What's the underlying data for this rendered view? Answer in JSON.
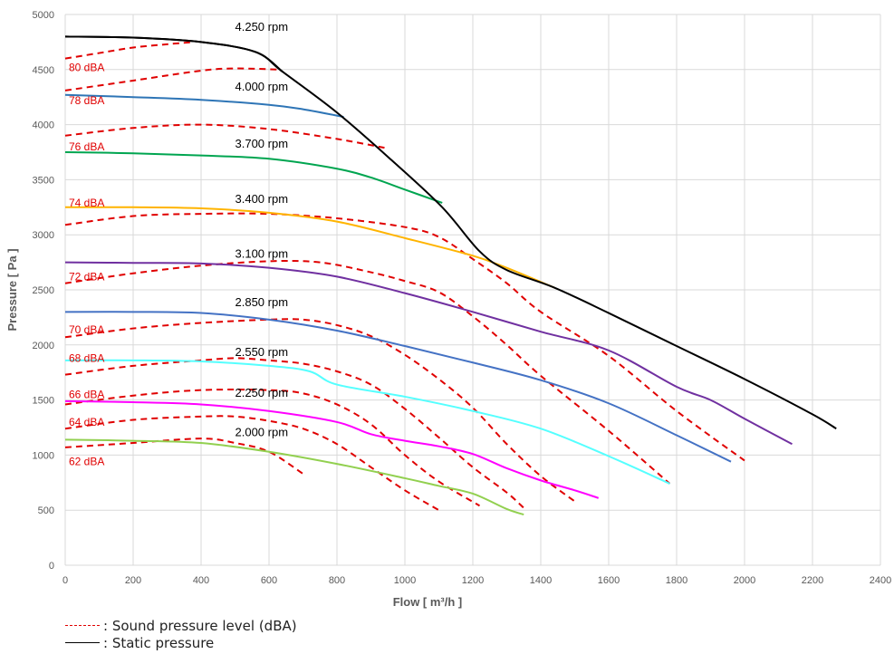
{
  "chart_data": {
    "type": "line",
    "xlabel": "Flow  [ m³/h ]",
    "ylabel": "Pressure  [ Pa ]",
    "xlim": [
      0,
      2400
    ],
    "ylim": [
      0,
      5000
    ],
    "x_ticks": [
      "0",
      "200",
      "400",
      "600",
      "800",
      "1000",
      "1200",
      "1400",
      "1600",
      "1800",
      "2000",
      "2200",
      "2400"
    ],
    "y_ticks": [
      "0",
      "500",
      "1000",
      "1500",
      "2000",
      "2500",
      "3000",
      "3500",
      "4000",
      "4500",
      "5000"
    ],
    "grid": true,
    "static_pressure_envelope": {
      "name": "Static pressure",
      "color": "#000000",
      "points": [
        [
          0,
          4800
        ],
        [
          200,
          4790
        ],
        [
          400,
          4750
        ],
        [
          560,
          4660
        ],
        [
          640,
          4480
        ],
        [
          800,
          4110
        ],
        [
          960,
          3680
        ],
        [
          1110,
          3250
        ],
        [
          1220,
          2850
        ],
        [
          1300,
          2680
        ],
        [
          1440,
          2520
        ],
        [
          1600,
          2290
        ],
        [
          1800,
          1990
        ],
        [
          2000,
          1690
        ],
        [
          2200,
          1370
        ],
        [
          2270,
          1240
        ]
      ]
    },
    "series": [
      {
        "label": "4.250 rpm",
        "color": "#000000",
        "points": [
          [
            0,
            4800
          ],
          [
            200,
            4790
          ],
          [
            400,
            4750
          ],
          [
            560,
            4660
          ],
          [
            640,
            4480
          ]
        ]
      },
      {
        "label": "4.000 rpm",
        "color": "#2e75b6",
        "points": [
          [
            0,
            4270
          ],
          [
            200,
            4250
          ],
          [
            400,
            4225
          ],
          [
            600,
            4180
          ],
          [
            700,
            4140
          ],
          [
            820,
            4070
          ]
        ]
      },
      {
        "label": "3.700 rpm",
        "color": "#00a550",
        "points": [
          [
            0,
            3750
          ],
          [
            200,
            3740
          ],
          [
            400,
            3720
          ],
          [
            600,
            3690
          ],
          [
            800,
            3600
          ],
          [
            900,
            3520
          ],
          [
            1000,
            3410
          ],
          [
            1110,
            3290
          ]
        ]
      },
      {
        "label": "3.400 rpm",
        "color": "#ffb400",
        "points": [
          [
            0,
            3250
          ],
          [
            200,
            3250
          ],
          [
            400,
            3240
          ],
          [
            600,
            3200
          ],
          [
            800,
            3120
          ],
          [
            1000,
            2970
          ],
          [
            1200,
            2810
          ],
          [
            1300,
            2700
          ],
          [
            1440,
            2520
          ]
        ]
      },
      {
        "label": "3.100 rpm",
        "color": "#7030a0",
        "points": [
          [
            0,
            2750
          ],
          [
            200,
            2745
          ],
          [
            400,
            2740
          ],
          [
            600,
            2700
          ],
          [
            800,
            2620
          ],
          [
            1000,
            2470
          ],
          [
            1200,
            2300
          ],
          [
            1400,
            2120
          ],
          [
            1600,
            1950
          ],
          [
            1800,
            1620
          ],
          [
            1900,
            1500
          ],
          [
            2000,
            1330
          ],
          [
            2140,
            1100
          ]
        ]
      },
      {
        "label": "2.850 rpm",
        "color": "#4472c4",
        "points": [
          [
            0,
            2300
          ],
          [
            200,
            2300
          ],
          [
            400,
            2290
          ],
          [
            600,
            2230
          ],
          [
            800,
            2130
          ],
          [
            1000,
            1990
          ],
          [
            1200,
            1840
          ],
          [
            1400,
            1680
          ],
          [
            1600,
            1470
          ],
          [
            1800,
            1180
          ],
          [
            1960,
            940
          ]
        ]
      },
      {
        "label": "2.550 rpm",
        "color": "#55ffff",
        "points": [
          [
            0,
            1860
          ],
          [
            200,
            1860
          ],
          [
            400,
            1850
          ],
          [
            600,
            1810
          ],
          [
            720,
            1760
          ],
          [
            800,
            1640
          ],
          [
            1000,
            1530
          ],
          [
            1200,
            1400
          ],
          [
            1400,
            1240
          ],
          [
            1600,
            990
          ],
          [
            1780,
            740
          ]
        ]
      },
      {
        "label": "2.250 rpm",
        "color": "#ff00ff",
        "points": [
          [
            0,
            1490
          ],
          [
            200,
            1480
          ],
          [
            400,
            1460
          ],
          [
            600,
            1400
          ],
          [
            800,
            1300
          ],
          [
            900,
            1190
          ],
          [
            1000,
            1130
          ],
          [
            1100,
            1080
          ],
          [
            1200,
            1010
          ],
          [
            1300,
            880
          ],
          [
            1400,
            770
          ],
          [
            1500,
            680
          ],
          [
            1570,
            610
          ]
        ]
      },
      {
        "label": "2.000 rpm",
        "color": "#92d050",
        "points": [
          [
            0,
            1140
          ],
          [
            200,
            1130
          ],
          [
            400,
            1110
          ],
          [
            600,
            1030
          ],
          [
            800,
            920
          ],
          [
            1000,
            790
          ],
          [
            1100,
            720
          ],
          [
            1200,
            650
          ],
          [
            1300,
            510
          ],
          [
            1350,
            460
          ]
        ]
      }
    ],
    "sound_curves": [
      {
        "label": "80 dBA",
        "color": "#e00000",
        "points": [
          [
            0,
            4600
          ],
          [
            100,
            4650
          ],
          [
            200,
            4700
          ],
          [
            300,
            4730
          ],
          [
            380,
            4750
          ]
        ]
      },
      {
        "label": "78 dBA",
        "color": "#e00000",
        "points": [
          [
            0,
            4310
          ],
          [
            200,
            4400
          ],
          [
            400,
            4490
          ],
          [
            500,
            4510
          ],
          [
            630,
            4500
          ]
        ]
      },
      {
        "label": "76 dBA",
        "color": "#e00000",
        "points": [
          [
            0,
            3900
          ],
          [
            200,
            3970
          ],
          [
            400,
            4000
          ],
          [
            600,
            3960
          ],
          [
            800,
            3870
          ],
          [
            940,
            3790
          ]
        ]
      },
      {
        "label": "74 dBA",
        "color": "#e00000",
        "points": [
          [
            0,
            3090
          ],
          [
            200,
            3170
          ],
          [
            400,
            3190
          ],
          [
            600,
            3190
          ],
          [
            800,
            3150
          ],
          [
            1000,
            3070
          ],
          [
            1100,
            2980
          ],
          [
            1200,
            2780
          ],
          [
            1300,
            2560
          ],
          [
            1400,
            2300
          ],
          [
            1600,
            1900
          ],
          [
            1800,
            1400
          ],
          [
            2000,
            950
          ]
        ]
      },
      {
        "label": "72 dBA",
        "color": "#e00000",
        "points": [
          [
            0,
            2560
          ],
          [
            200,
            2650
          ],
          [
            400,
            2720
          ],
          [
            600,
            2760
          ],
          [
            750,
            2750
          ],
          [
            900,
            2660
          ],
          [
            1000,
            2580
          ],
          [
            1100,
            2480
          ],
          [
            1200,
            2260
          ],
          [
            1300,
            2000
          ],
          [
            1400,
            1720
          ],
          [
            1600,
            1220
          ],
          [
            1780,
            740
          ]
        ]
      },
      {
        "label": "70 dBA",
        "color": "#e00000",
        "points": [
          [
            0,
            2070
          ],
          [
            200,
            2150
          ],
          [
            400,
            2200
          ],
          [
            600,
            2230
          ],
          [
            700,
            2230
          ],
          [
            800,
            2180
          ],
          [
            900,
            2080
          ],
          [
            1000,
            1910
          ],
          [
            1100,
            1690
          ],
          [
            1200,
            1430
          ],
          [
            1300,
            1100
          ],
          [
            1400,
            810
          ],
          [
            1500,
            580
          ]
        ]
      },
      {
        "label": "68 dBA",
        "color": "#e00000",
        "points": [
          [
            0,
            1730
          ],
          [
            200,
            1810
          ],
          [
            400,
            1860
          ],
          [
            500,
            1880
          ],
          [
            600,
            1860
          ],
          [
            700,
            1830
          ],
          [
            800,
            1760
          ],
          [
            900,
            1640
          ],
          [
            1000,
            1420
          ],
          [
            1100,
            1160
          ],
          [
            1200,
            890
          ],
          [
            1300,
            660
          ],
          [
            1350,
            520
          ]
        ]
      },
      {
        "label": "66 dBA",
        "color": "#e00000",
        "points": [
          [
            0,
            1460
          ],
          [
            200,
            1540
          ],
          [
            400,
            1590
          ],
          [
            600,
            1590
          ],
          [
            700,
            1560
          ],
          [
            800,
            1460
          ],
          [
            900,
            1280
          ],
          [
            1000,
            1000
          ],
          [
            1100,
            760
          ],
          [
            1220,
            540
          ]
        ]
      },
      {
        "label": "64 dBA",
        "color": "#e00000",
        "points": [
          [
            0,
            1240
          ],
          [
            200,
            1320
          ],
          [
            400,
            1350
          ],
          [
            500,
            1350
          ],
          [
            600,
            1310
          ],
          [
            700,
            1240
          ],
          [
            800,
            1100
          ],
          [
            900,
            890
          ],
          [
            1000,
            680
          ],
          [
            1100,
            500
          ]
        ]
      },
      {
        "label": "62 dBA",
        "color": "#e00000",
        "points": [
          [
            0,
            1070
          ],
          [
            200,
            1110
          ],
          [
            400,
            1150
          ],
          [
            500,
            1110
          ],
          [
            600,
            1030
          ],
          [
            700,
            830
          ]
        ]
      }
    ]
  },
  "legend": {
    "sound": ": Sound pressure level (dBA)",
    "static": ": Static pressure"
  }
}
